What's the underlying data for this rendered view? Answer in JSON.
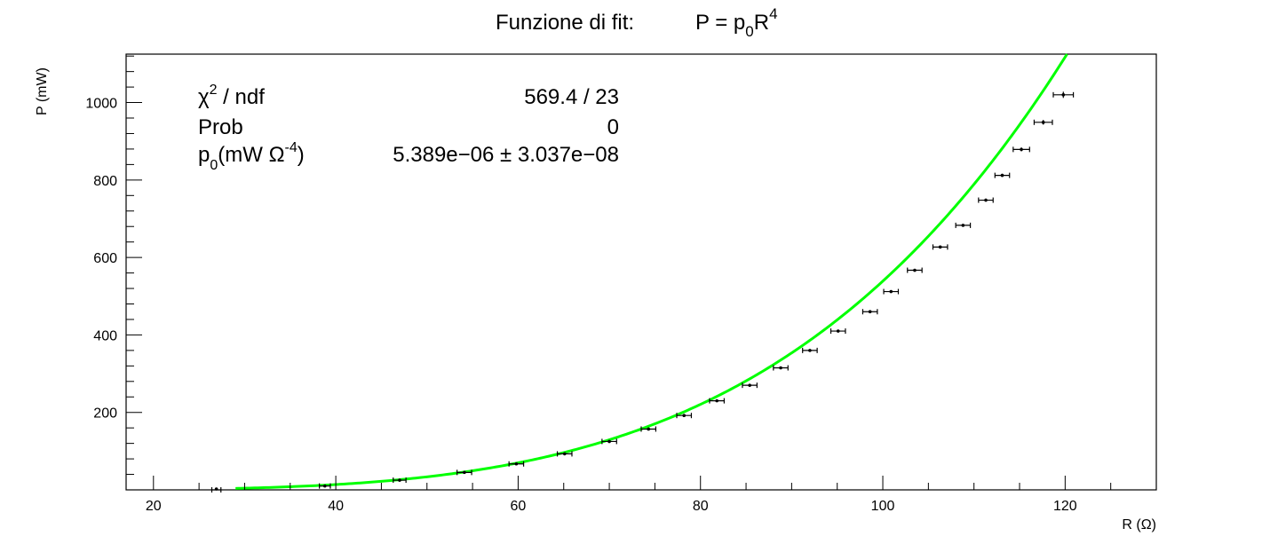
{
  "chart_data": {
    "type": "scatter",
    "title": {
      "prefix": "Funzione di fit:",
      "formula_main": "P = p",
      "formula_sub": "0",
      "formula_var": "R",
      "formula_sup": "4"
    },
    "xlabel": "R (Ω)",
    "ylabel": "P (mW)",
    "xlim": [
      17,
      130
    ],
    "ylim": [
      0,
      1125
    ],
    "x_ticks": [
      20,
      40,
      60,
      80,
      100,
      120
    ],
    "y_ticks": [
      200,
      400,
      600,
      800,
      1000
    ],
    "grid": false,
    "stats": {
      "chi2_label": "χ",
      "chi2_sup": "2",
      "chi2_suffix": " / ndf",
      "chi2_value": "569.4 / 23",
      "prob_label": "Prob",
      "prob_value": "0",
      "p0_label": "p",
      "p0_sub": "0",
      "p0_unit_open": "(mW Ω",
      "p0_unit_sup": "-4",
      "p0_unit_close": ")",
      "p0_value": "5.389e−06 ± 3.037e−08"
    },
    "fit": {
      "function": "p0*R^4",
      "p0": 5.389e-06,
      "color": "#00ff00"
    },
    "series": [
      {
        "marker_color": "#000000",
        "x": [
          26.9,
          38.8,
          47.0,
          54.1,
          59.8,
          65.1,
          70.0,
          74.3,
          78.2,
          81.8,
          85.4,
          88.8,
          92.0,
          95.1,
          98.6,
          100.9,
          103.5,
          106.3,
          108.8,
          111.3,
          113.1,
          115.2,
          117.6,
          119.8
        ],
        "y": [
          0,
          10,
          25,
          45,
          67,
          93,
          125,
          157,
          192,
          230,
          270,
          315,
          360,
          410,
          460,
          512,
          567,
          627,
          683,
          748,
          812,
          879,
          949,
          1020
        ],
        "x_err": [
          0.5,
          0.6,
          0.7,
          0.8,
          0.8,
          0.8,
          0.8,
          0.8,
          0.8,
          0.8,
          0.8,
          0.8,
          0.8,
          0.8,
          0.8,
          0.8,
          0.8,
          0.8,
          0.8,
          0.8,
          0.8,
          0.9,
          1.0,
          1.1
        ],
        "y_err": [
          1,
          2,
          2,
          3,
          3,
          3,
          3,
          3,
          3,
          3,
          3,
          3,
          3,
          3,
          3,
          3,
          3,
          3,
          3,
          4,
          4,
          5,
          6,
          8
        ]
      }
    ]
  }
}
